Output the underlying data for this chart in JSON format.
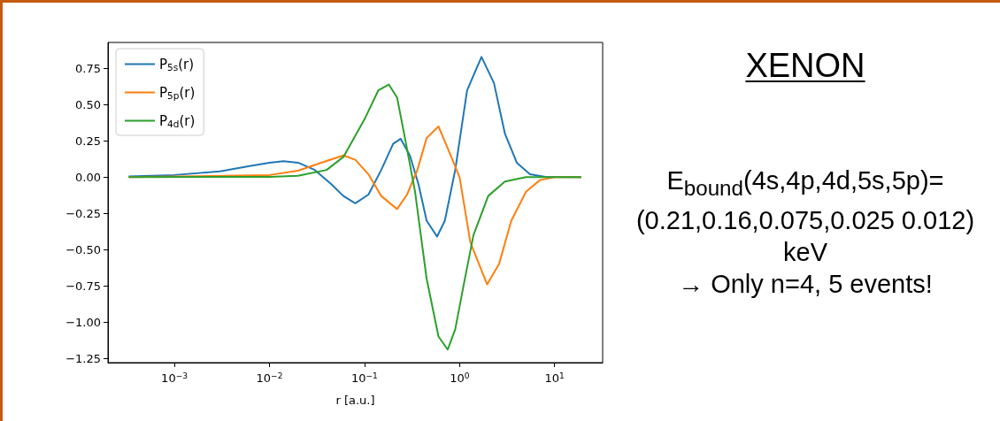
{
  "chart_data": {
    "type": "line",
    "title": "XENON",
    "xlabel": "r [a.u.]",
    "annotations": [
      "E$_{bound}$(4s,4p,4d,5s,5p)= (0.21,0.16,0.075,0.025 0.012) keV",
      "→ Only n=4, 5 events!"
    ],
    "log": "x",
    "legend": "top left",
    "xlim": [
      0.0002,
      32
    ],
    "ylim": [
      -1.28,
      0.93
    ],
    "xticks": [
      {
        "value": 0.001,
        "label": "10$^{−3}$"
      },
      {
        "value": 0.01,
        "label": "10$^{−2}$"
      },
      {
        "value": 0.1,
        "label": "10$^{−1}$"
      },
      {
        "value": 1,
        "label": "10$^{0}$"
      },
      {
        "value": 10,
        "label": "10$^{1}$"
      }
    ],
    "yticks": [
      {
        "value": -1.25,
        "label": "−1.25"
      },
      {
        "value": -1,
        "label": "−1.00"
      },
      {
        "value": -0.75,
        "label": "−0.75"
      },
      {
        "value": -0.5,
        "label": "−0.50"
      },
      {
        "value": -0.25,
        "label": "−0.25"
      },
      {
        "value": 0,
        "label": "0.00"
      },
      {
        "value": 0.25,
        "label": "0.25"
      },
      {
        "value": 0.5,
        "label": "0.50"
      },
      {
        "value": 0.75,
        "label": "0.75"
      }
    ],
    "series": [
      {
        "name": "P$_{5s}$(r)",
        "color": "#1f77b4",
        "x": [
          0.00033,
          0.001,
          0.003,
          0.006,
          0.01,
          0.014,
          0.02,
          0.03,
          0.045,
          0.06,
          0.08,
          0.11,
          0.15,
          0.2,
          0.24,
          0.3,
          0.37,
          0.45,
          0.58,
          0.7,
          0.9,
          1.2,
          1.7,
          2.3,
          3,
          4,
          5.5,
          8,
          19
        ],
        "values": [
          0.005,
          0.015,
          0.04,
          0.075,
          0.1,
          0.11,
          0.1,
          0.05,
          -0.05,
          -0.13,
          -0.18,
          -0.12,
          0.05,
          0.23,
          0.265,
          0.15,
          -0.05,
          -0.3,
          -0.41,
          -0.3,
          0.05,
          0.6,
          0.83,
          0.65,
          0.3,
          0.1,
          0.02,
          0.002,
          0
        ]
      },
      {
        "name": "P$_{5p}$(r)",
        "color": "#ff7f0e",
        "x": [
          0.00033,
          0.01,
          0.02,
          0.035,
          0.06,
          0.08,
          0.11,
          0.15,
          0.22,
          0.28,
          0.36,
          0.45,
          0.6,
          0.75,
          1,
          1.3,
          1.95,
          2.6,
          3.5,
          5,
          7,
          10,
          19
        ],
        "values": [
          0,
          0.015,
          0.045,
          0.1,
          0.15,
          0.12,
          0.02,
          -0.13,
          -0.22,
          -0.12,
          0.05,
          0.27,
          0.35,
          0.2,
          0,
          -0.45,
          -0.74,
          -0.6,
          -0.3,
          -0.1,
          -0.02,
          0,
          0
        ]
      },
      {
        "name": "P$_{4d}$(r)",
        "color": "#2ca02c",
        "x": [
          0.00033,
          0.01,
          0.02,
          0.04,
          0.06,
          0.1,
          0.14,
          0.18,
          0.22,
          0.27,
          0.34,
          0.45,
          0.6,
          0.75,
          0.9,
          1.1,
          1.4,
          2,
          3,
          5,
          19
        ],
        "values": [
          0,
          0.002,
          0.01,
          0.05,
          0.14,
          0.4,
          0.6,
          0.64,
          0.55,
          0.25,
          -0.1,
          -0.7,
          -1.1,
          -1.19,
          -1.05,
          -0.75,
          -0.4,
          -0.13,
          -0.03,
          0,
          0
        ]
      }
    ]
  }
}
